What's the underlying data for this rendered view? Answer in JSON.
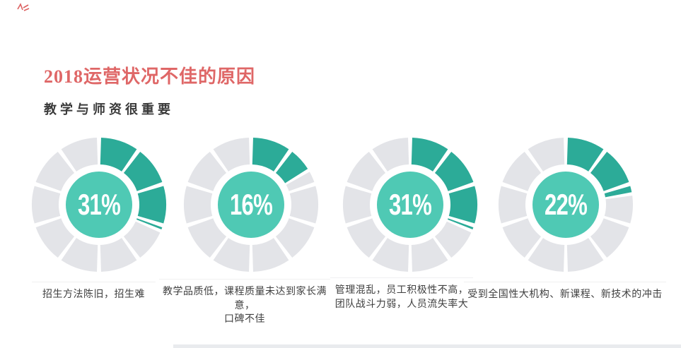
{
  "page": {
    "background": "#ffffff"
  },
  "header": {
    "title": "2018运营状况不佳的原因",
    "title_color": "#df6767",
    "subtitle": "教学与师资很重要",
    "subtitle_color": "#3a3a3a"
  },
  "decorations": {
    "corner_mark_color": "#d94f4f",
    "bottom_band_color": "#e9ebee"
  },
  "chart_data": {
    "type": "pie",
    "subtype": "segmented-donut-multiples",
    "segments_per_ring": 10,
    "start_angle_deg": 0,
    "direction": "clockwise",
    "colors": {
      "active": "#2cab98",
      "inactive": "#e3e4e8",
      "center": "#4fc9b4",
      "label": "#ffffff"
    },
    "title": "2018运营状况不佳的原因",
    "subtitle": "教学与师资很重要",
    "items": [
      {
        "value": 31,
        "value_label": "31%",
        "caption": "招生方法陈旧，招生难"
      },
      {
        "value": 16,
        "value_label": "16%",
        "caption": "教学品质低，课程质量未达到家长满意，\n口碑不佳"
      },
      {
        "value": 31,
        "value_label": "31%",
        "caption": "管理混乱，员工积极性不高，\n团队战斗力弱，人员流失率大"
      },
      {
        "value": 22,
        "value_label": "22%",
        "caption": "受到全国性大机构、新课程、新技术的冲击"
      }
    ]
  }
}
